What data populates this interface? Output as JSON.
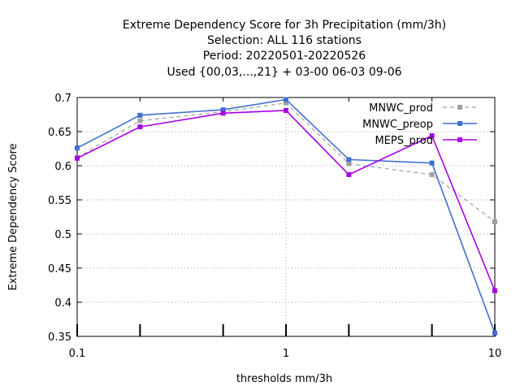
{
  "chart_data": {
    "type": "line",
    "title_lines": [
      "Extreme Dependency Score  for 3h Precipitation (mm/3h)",
      "Selection: ALL    116 stations",
      "Period: 20220501-20220526",
      "Used {00,03,...,21} + 03-00 06-03 09-06"
    ],
    "xlabel": "thresholds mm/3h",
    "ylabel": "Extreme Dependency Score",
    "xscale": "log",
    "xlim": [
      0.1,
      10
    ],
    "ylim": [
      0.35,
      0.7
    ],
    "xticks": [
      {
        "value": 0.1,
        "label": "0.1"
      },
      {
        "value": 1,
        "label": "1"
      },
      {
        "value": 10,
        "label": "10"
      }
    ],
    "xminor_ticks": [
      0.2,
      0.5,
      2,
      5
    ],
    "yticks": [
      {
        "value": 0.35,
        "label": "0.35"
      },
      {
        "value": 0.4,
        "label": "0.4"
      },
      {
        "value": 0.45,
        "label": "0.45"
      },
      {
        "value": 0.5,
        "label": "0.5"
      },
      {
        "value": 0.55,
        "label": "0.55"
      },
      {
        "value": 0.6,
        "label": "0.6"
      },
      {
        "value": 0.65,
        "label": "0.65"
      },
      {
        "value": 0.7,
        "label": "0.7"
      }
    ],
    "grid": true,
    "legend_position": "top-right",
    "x": [
      0.1,
      0.2,
      0.5,
      1,
      2,
      5,
      10
    ],
    "series": [
      {
        "name": "MNWC_prod",
        "color": "#a0a0a0",
        "dashed": true,
        "values": [
          0.612,
          0.666,
          0.679,
          0.692,
          0.603,
          0.587,
          0.518
        ]
      },
      {
        "name": "MNWC_preop",
        "color": "#3f6fd1",
        "dashed": false,
        "values": [
          0.626,
          0.674,
          0.682,
          0.697,
          0.609,
          0.604,
          0.355
        ]
      },
      {
        "name": "MEPS_prod",
        "color": "#aa00e6",
        "dashed": false,
        "values": [
          0.611,
          0.657,
          0.677,
          0.681,
          0.587,
          0.644,
          0.417
        ]
      }
    ]
  }
}
